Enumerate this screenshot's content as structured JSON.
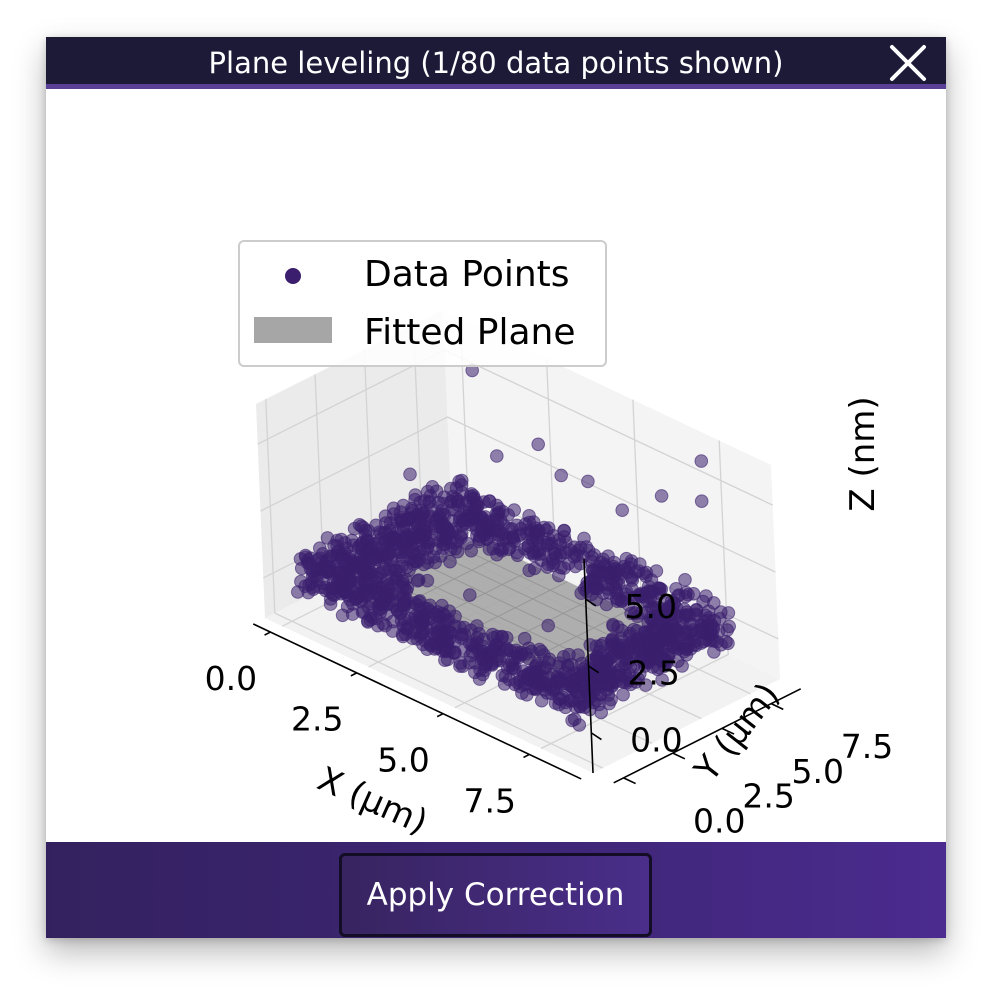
{
  "dialog": {
    "title": "Plane leveling (1/80 data points shown)",
    "close_icon": "close-x-icon",
    "apply_label": "Apply Correction"
  },
  "colors": {
    "titlebar_bg": "#1d1a38",
    "accent": "#5a3f97",
    "point_color": "#3b1f6e",
    "plane_color": "#a6a6a6"
  },
  "chart_data": {
    "type": "scatter",
    "projection": "3d",
    "title": "",
    "xlabel": "X (µm)",
    "ylabel": "Y (µm)",
    "zlabel": "Z (nm)",
    "xlim": [
      -0.5,
      9.0
    ],
    "ylim": [
      -0.5,
      9.0
    ],
    "zlim": [
      -1.5,
      6.5
    ],
    "x_ticks": [
      "0.0",
      "2.5",
      "5.0",
      "7.5"
    ],
    "y_ticks": [
      "0.0",
      "2.5",
      "5.0",
      "7.5"
    ],
    "z_ticks": [
      "0.0",
      "2.5",
      "5.0"
    ],
    "grid": true,
    "legend": {
      "placement": "top-left",
      "entries": [
        "Data Points",
        "Fitted Plane"
      ]
    },
    "series": [
      {
        "name": "Data Points",
        "kind": "points",
        "description": "square frame of points along the sample border at z≈0-1 nm, with scattered outliers up to ~6 nm and a few points in the interior",
        "frame_outer": [
          0.0,
          8.3
        ],
        "frame_inner": [
          1.5,
          6.8
        ],
        "z_base": 0.3
      },
      {
        "name": "Fitted Plane",
        "kind": "surface",
        "extent": [
          1.5,
          6.8
        ],
        "z": 0.0
      }
    ],
    "outliers": [
      {
        "x": 1.0,
        "y": 7.8,
        "z": 5.6
      },
      {
        "x": 7.6,
        "y": 7.9,
        "z": 6.2
      },
      {
        "x": 7.5,
        "y": 8.0,
        "z": 4.6
      },
      {
        "x": 6.5,
        "y": 7.7,
        "z": 4.3
      },
      {
        "x": 2.8,
        "y": 7.9,
        "z": 3.9
      },
      {
        "x": 4.4,
        "y": 7.6,
        "z": 3.6
      },
      {
        "x": 3.5,
        "y": 7.8,
        "z": 3.2
      },
      {
        "x": 1.8,
        "y": 7.5,
        "z": 3.0
      },
      {
        "x": 5.2,
        "y": 7.9,
        "z": 2.9
      },
      {
        "x": 6.9,
        "y": 5.8,
        "z": 2.7
      },
      {
        "x": 7.8,
        "y": 6.5,
        "z": 2.4
      },
      {
        "x": 8.1,
        "y": 4.2,
        "z": 2.0
      },
      {
        "x": 0.4,
        "y": 5.5,
        "z": 2.2
      },
      {
        "x": 5.9,
        "y": 2.8,
        "z": 0.9
      },
      {
        "x": 3.5,
        "y": 3.0,
        "z": 0.5
      }
    ]
  }
}
